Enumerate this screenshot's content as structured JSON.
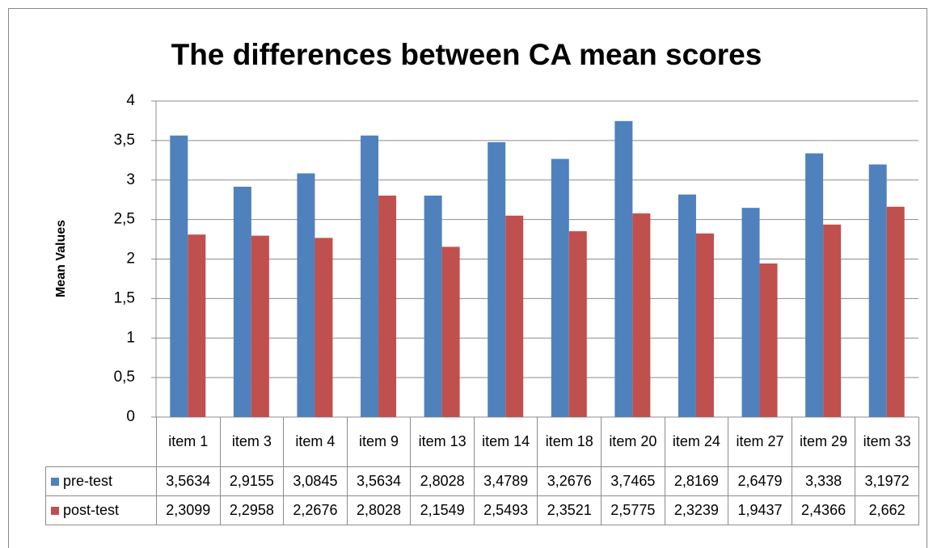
{
  "chart_data": {
    "type": "bar",
    "title": "The differences between CA mean scores",
    "y_label": "Mean Values",
    "categories": [
      "item 1",
      "item 3",
      "item 4",
      "item 9",
      "item 13",
      "item 14",
      "item 18",
      "item 20",
      "item 24",
      "item 27",
      "item 29",
      "item 33"
    ],
    "series": [
      {
        "name": "pre-test",
        "color": "#4f81bd",
        "values": [
          3.5634,
          2.9155,
          3.0845,
          3.5634,
          2.8028,
          3.4789,
          3.2676,
          3.7465,
          2.8169,
          2.6479,
          3.338,
          3.1972
        ],
        "value_labels": [
          "3,5634",
          "2,9155",
          "3,0845",
          "3,5634",
          "2,8028",
          "3,4789",
          "3,2676",
          "3,7465",
          "2,8169",
          "2,6479",
          "3,338",
          "3,1972"
        ]
      },
      {
        "name": "post-test",
        "color": "#c0504d",
        "values": [
          2.3099,
          2.2958,
          2.2676,
          2.8028,
          2.1549,
          2.5493,
          2.3521,
          2.5775,
          2.3239,
          1.9437,
          2.4366,
          2.662
        ],
        "value_labels": [
          "2,3099",
          "2,2958",
          "2,2676",
          "2,8028",
          "2,1549",
          "2,5493",
          "2,3521",
          "2,5775",
          "2,3239",
          "1,9437",
          "2,4366",
          "2,662"
        ]
      }
    ],
    "ylim": [
      0,
      4
    ],
    "yticks": [
      0,
      {
        "value": 0.5,
        "label": "0,5"
      },
      1,
      {
        "value": 1.5,
        "label": "1,5"
      },
      2,
      {
        "value": 2.5,
        "label": "2,5"
      },
      3,
      {
        "value": 3.5,
        "label": "3,5"
      },
      4
    ],
    "grid": true
  }
}
